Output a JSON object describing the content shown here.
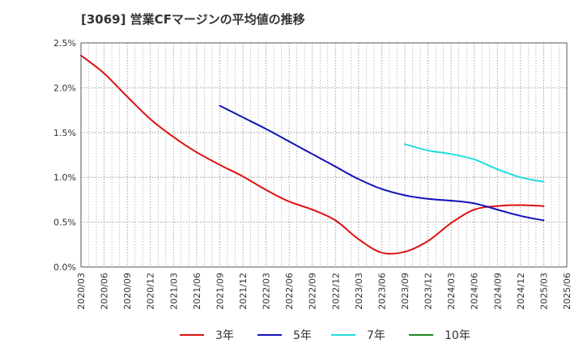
{
  "chart_data": {
    "type": "line",
    "title": "[3069]  営業CFマージンの平均値の推移",
    "ylim": [
      0,
      2.5
    ],
    "yticks": [
      "0.0%",
      "0.5%",
      "1.0%",
      "1.5%",
      "2.0%",
      "2.5%"
    ],
    "xticks": [
      "2020/03",
      "2020/06",
      "2020/09",
      "2020/12",
      "2021/03",
      "2021/06",
      "2021/09",
      "2021/12",
      "2022/03",
      "2022/06",
      "2022/09",
      "2022/12",
      "2023/03",
      "2023/06",
      "2023/09",
      "2023/12",
      "2024/03",
      "2024/06",
      "2024/09",
      "2024/12",
      "2025/03",
      "2025/06"
    ],
    "grid": true,
    "legend_position": "bottom",
    "series": [
      {
        "name": "3年",
        "color": "#dd1111",
        "x": [
          "2020/03",
          "2020/06",
          "2020/09",
          "2020/12",
          "2021/03",
          "2021/06",
          "2021/09",
          "2021/12",
          "2022/03",
          "2022/06",
          "2022/09",
          "2022/12",
          "2023/03",
          "2023/06",
          "2023/09",
          "2023/12",
          "2024/03",
          "2024/06",
          "2024/09",
          "2024/12",
          "2025/03"
        ],
        "values": [
          2.36,
          2.16,
          1.9,
          1.65,
          1.45,
          1.28,
          1.14,
          1.01,
          0.86,
          0.73,
          0.64,
          0.52,
          0.31,
          0.16,
          0.17,
          0.29,
          0.49,
          0.64,
          0.68,
          0.69,
          0.68
        ]
      },
      {
        "name": "5年",
        "color": "#1111bb",
        "x": [
          "2021/09",
          "2021/12",
          "2022/03",
          "2022/06",
          "2022/09",
          "2022/12",
          "2023/03",
          "2023/06",
          "2023/09",
          "2023/12",
          "2024/03",
          "2024/06",
          "2024/09",
          "2024/12",
          "2025/03"
        ],
        "values": [
          1.8,
          1.67,
          1.54,
          1.4,
          1.26,
          1.12,
          0.98,
          0.87,
          0.8,
          0.76,
          0.74,
          0.71,
          0.64,
          0.57,
          0.52
        ]
      },
      {
        "name": "7年",
        "color": "#22dddd",
        "x": [
          "2023/09",
          "2023/12",
          "2024/03",
          "2024/06",
          "2024/09",
          "2024/12",
          "2025/03"
        ],
        "values": [
          1.37,
          1.3,
          1.26,
          1.2,
          1.09,
          1.0,
          0.95
        ]
      },
      {
        "name": "10年",
        "color": "#228822",
        "x": [],
        "values": []
      }
    ]
  }
}
